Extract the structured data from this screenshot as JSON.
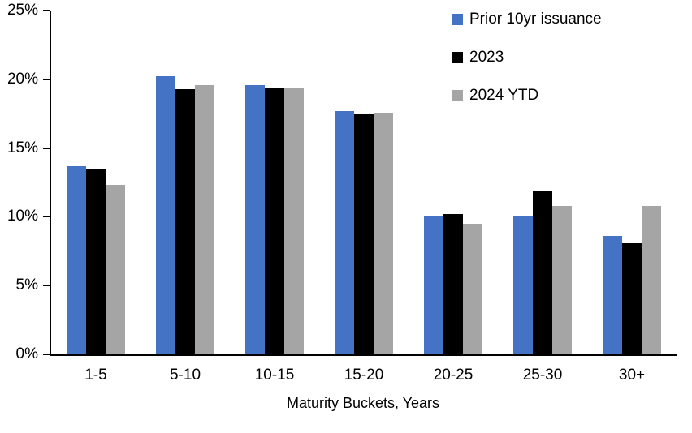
{
  "chart_data": {
    "type": "bar",
    "title": "",
    "xlabel": "Maturity Buckets, Years",
    "ylabel": "",
    "categories": [
      "1-5",
      "5-10",
      "10-15",
      "15-20",
      "20-25",
      "25-30",
      "30+"
    ],
    "series": [
      {
        "name": "Prior 10yr issuance",
        "color": "#4472C4",
        "values": [
          13.7,
          20.2,
          19.6,
          17.7,
          10.1,
          10.1,
          8.6
        ]
      },
      {
        "name": "2023",
        "color": "#000000",
        "values": [
          13.5,
          19.3,
          19.4,
          17.5,
          10.2,
          11.9,
          8.1
        ]
      },
      {
        "name": "2024 YTD",
        "color": "#A5A5A5",
        "values": [
          12.3,
          19.6,
          19.4,
          17.6,
          9.5,
          10.8,
          10.8
        ]
      }
    ],
    "ylim": [
      0,
      25
    ],
    "y_ticks": [
      "0%",
      "5%",
      "10%",
      "15%",
      "20%",
      "25%"
    ],
    "y_tick_values": [
      0,
      5,
      10,
      15,
      20,
      25
    ],
    "grid": false,
    "legend_position": "top-right",
    "axis_color": "#000000"
  }
}
